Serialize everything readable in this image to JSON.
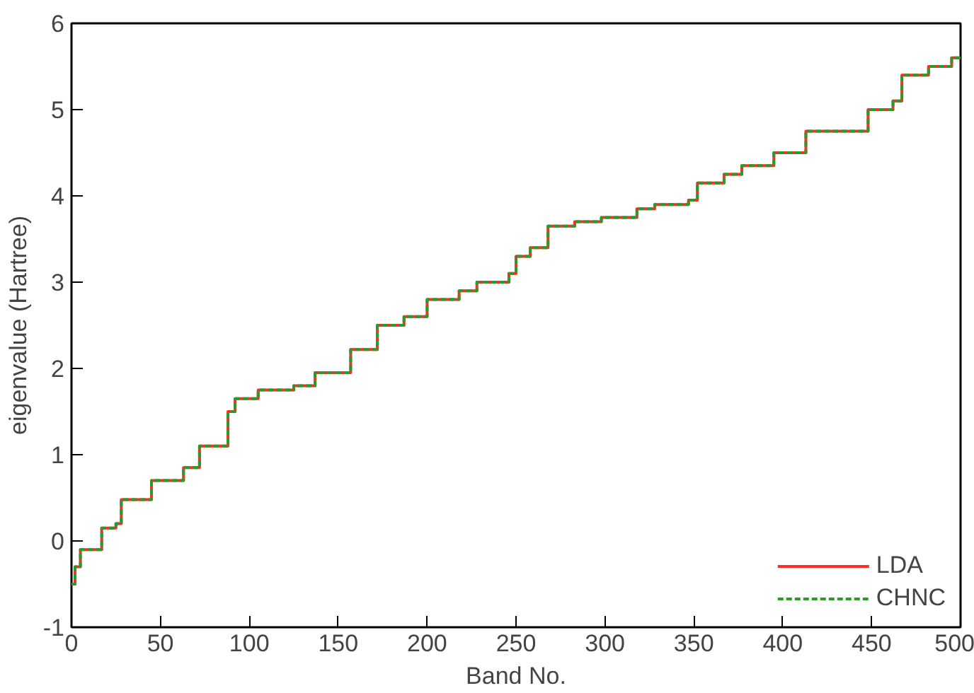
{
  "chart_data": {
    "type": "step",
    "xlabel": "Band No.",
    "ylabel": "eigenvalue (Hartree)",
    "xlim": [
      0,
      500
    ],
    "ylim": [
      -1,
      6
    ],
    "xticks": [
      0,
      50,
      100,
      150,
      200,
      250,
      300,
      350,
      400,
      450,
      500
    ],
    "yticks": [
      -1,
      0,
      1,
      2,
      3,
      4,
      5,
      6
    ],
    "grid": false,
    "legend": "bottom right",
    "x": [
      0,
      2,
      5,
      17,
      25,
      28,
      45,
      63,
      72,
      88,
      92,
      105,
      125,
      137,
      157,
      172,
      187,
      200,
      218,
      228,
      246,
      250,
      258,
      268,
      283,
      298,
      318,
      328,
      347,
      352,
      367,
      377,
      395,
      413,
      448,
      462,
      467,
      482,
      495,
      500
    ],
    "series": [
      {
        "name": "LDA",
        "color": "#ff2a2a",
        "line_style": "solid",
        "values": [
          -0.5,
          -0.3,
          -0.1,
          0.15,
          0.2,
          0.48,
          0.7,
          0.85,
          1.1,
          1.5,
          1.65,
          1.75,
          1.8,
          1.95,
          2.22,
          2.5,
          2.6,
          2.8,
          2.9,
          3.0,
          3.1,
          3.3,
          3.4,
          3.65,
          3.7,
          3.75,
          3.85,
          3.9,
          3.95,
          4.15,
          4.25,
          4.35,
          4.5,
          4.75,
          5.0,
          5.1,
          5.4,
          5.5,
          5.6,
          5.6
        ]
      },
      {
        "name": "CHNC",
        "color": "#2a9a2a",
        "line_style": "dashed",
        "values": [
          -0.5,
          -0.3,
          -0.1,
          0.15,
          0.2,
          0.48,
          0.7,
          0.85,
          1.1,
          1.5,
          1.65,
          1.75,
          1.8,
          1.95,
          2.22,
          2.5,
          2.6,
          2.8,
          2.9,
          3.0,
          3.1,
          3.3,
          3.4,
          3.65,
          3.7,
          3.75,
          3.85,
          3.9,
          3.95,
          4.15,
          4.25,
          4.35,
          4.5,
          4.75,
          5.0,
          5.1,
          5.4,
          5.5,
          5.6,
          5.6
        ]
      }
    ]
  }
}
